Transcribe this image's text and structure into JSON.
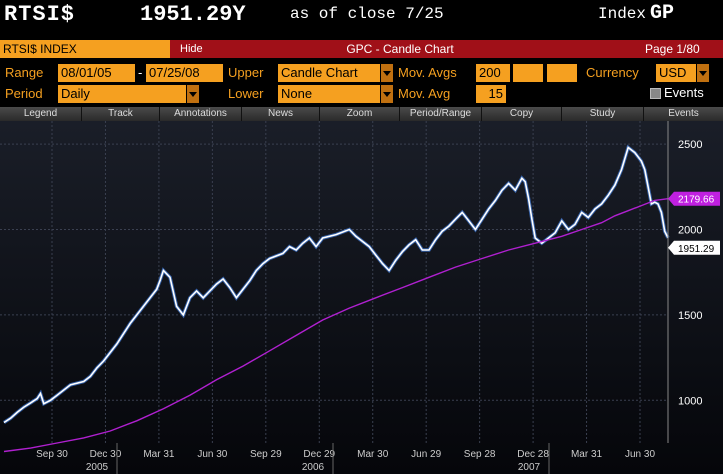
{
  "header": {
    "ticker": "RTSI$",
    "price": "1951.29Y",
    "as_of": "as of close  7/25",
    "index_label": "Index",
    "index_code": "GP"
  },
  "titlebar": {
    "security": "RTSI$ INDEX",
    "hide_label": "Hide",
    "title": "GPC - Candle Chart",
    "page": "Page 1/80"
  },
  "settings": {
    "range_label": "Range",
    "range_start": "08/01/05",
    "range_sep": "-",
    "range_end": "07/25/08",
    "upper_label": "Upper",
    "upper_value": "Candle Chart",
    "mov_avgs_label": "Mov. Avgs",
    "mov_avgs_value": "200",
    "currency_label": "Currency",
    "currency_value": "USD",
    "period_label": "Period",
    "period_value": "Daily",
    "lower_label": "Lower",
    "lower_value": "None",
    "mov_avg_label": "Mov. Avg",
    "mov_avg_value": "15",
    "events_label": "Events"
  },
  "toolbar": [
    "Legend",
    "Track",
    "Annotations",
    "News",
    "Zoom",
    "Period/Range",
    "Copy",
    "Study",
    "Events"
  ],
  "colors": {
    "accent": "#f5a020",
    "titlebar": "#a01018",
    "price_line": "#ffffff",
    "moving_average": "#b020d0",
    "ma_label_bg": "#c020e0",
    "grid": "#3a4050"
  },
  "chart_data": {
    "type": "line",
    "y_ticks": [
      1000,
      1500,
      2000,
      2500
    ],
    "y_tick_labels": [
      "1000",
      "1500",
      "2000",
      "2500"
    ],
    "ylim": [
      750,
      2600
    ],
    "x_tick_labels": [
      "Sep 30",
      "Dec 30",
      "Mar 31",
      "Jun 30",
      "Sep 29",
      "Dec 29",
      "Mar 30",
      "Jun 29",
      "Sep 28",
      "Dec 28",
      "Mar 31",
      "Jun 30"
    ],
    "year_labels": [
      "2005",
      "2006",
      "2007"
    ],
    "last_price_label": "1951.29",
    "ma_label": "2179.66",
    "series": [
      {
        "values": [
          870,
          895,
          930,
          960,
          985,
          1010,
          1040,
          980,
          1000,
          1030,
          1060,
          1090,
          1110,
          1140,
          1190,
          1230,
          1280,
          1330,
          1390,
          1450,
          1500,
          1550,
          1600,
          1650,
          1700,
          1760,
          1720,
          1550,
          1500,
          1600,
          1640,
          1600,
          1640,
          1680,
          1710,
          1660,
          1600,
          1650,
          1700,
          1760,
          1800,
          1830,
          1860,
          1900,
          1880,
          1920,
          1950,
          1900,
          1950,
          1970,
          2000,
          1960,
          1900,
          1850,
          1800,
          1760,
          1820,
          1870,
          1910,
          1940,
          1880,
          1880,
          1940,
          1990,
          2020,
          2060,
          2100,
          2050,
          2000,
          2060,
          2120,
          2170,
          2230,
          2270,
          2230,
          2300,
          2280,
          2180,
          2060,
          1950,
          1920,
          1950,
          1980,
          2050,
          2000,
          2030,
          2100,
          2070,
          2120,
          2150,
          2200,
          2260,
          2350,
          2480,
          2450,
          2400,
          2350,
          2250,
          2150,
          2160,
          2150,
          2100,
          1990,
          1951.29
        ],
        "x_frac": [
          0,
          0.01,
          0.02,
          0.03,
          0.04,
          0.05,
          0.055,
          0.06,
          0.07,
          0.08,
          0.09,
          0.1,
          0.12,
          0.13,
          0.14,
          0.15,
          0.16,
          0.17,
          0.18,
          0.19,
          0.2,
          0.21,
          0.22,
          0.23,
          0.235,
          0.24,
          0.25,
          0.26,
          0.27,
          0.28,
          0.29,
          0.3,
          0.31,
          0.32,
          0.33,
          0.34,
          0.35,
          0.36,
          0.37,
          0.38,
          0.39,
          0.4,
          0.42,
          0.43,
          0.44,
          0.45,
          0.46,
          0.47,
          0.48,
          0.5,
          0.52,
          0.53,
          0.55,
          0.56,
          0.57,
          0.58,
          0.59,
          0.6,
          0.61,
          0.62,
          0.63,
          0.64,
          0.65,
          0.66,
          0.67,
          0.68,
          0.69,
          0.7,
          0.71,
          0.72,
          0.73,
          0.74,
          0.75,
          0.76,
          0.77,
          0.78,
          0.785,
          0.79,
          0.795,
          0.8,
          0.81,
          0.82,
          0.83,
          0.84,
          0.85,
          0.86,
          0.87,
          0.88,
          0.89,
          0.9,
          0.91,
          0.92,
          0.93,
          0.94,
          0.95,
          0.96,
          0.965,
          0.97,
          0.975,
          0.98,
          0.985,
          0.99,
          0.995,
          1.0
        ]
      },
      {
        "values": [
          700,
          720,
          750,
          780,
          820,
          880,
          950,
          1030,
          1120,
          1200,
          1290,
          1380,
          1470,
          1540,
          1600,
          1660,
          1720,
          1780,
          1830,
          1880,
          1920,
          1960,
          2000,
          2040,
          2080,
          2110,
          2140,
          2170,
          2180
        ],
        "x_frac": [
          0,
          0.04,
          0.08,
          0.12,
          0.16,
          0.2,
          0.24,
          0.28,
          0.32,
          0.36,
          0.4,
          0.44,
          0.48,
          0.52,
          0.56,
          0.6,
          0.64,
          0.68,
          0.72,
          0.76,
          0.8,
          0.84,
          0.87,
          0.9,
          0.92,
          0.94,
          0.96,
          0.98,
          1.0
        ]
      }
    ]
  }
}
